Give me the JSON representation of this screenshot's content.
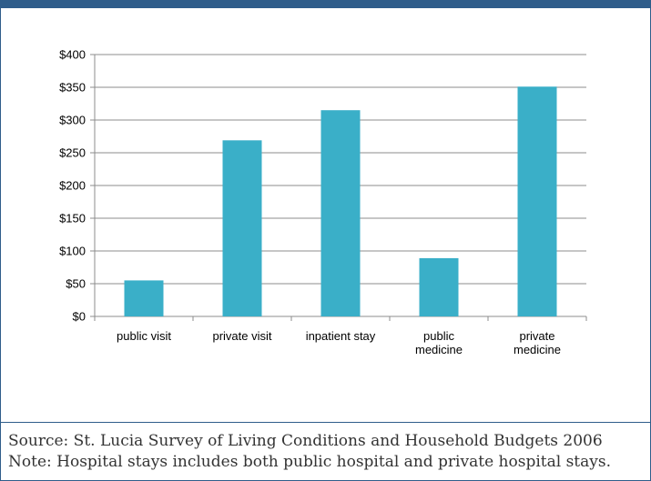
{
  "chart_data": {
    "type": "bar",
    "categories": [
      [
        "public visit"
      ],
      [
        "private visit"
      ],
      [
        "inpatient stay"
      ],
      [
        "public",
        "medicine"
      ],
      [
        "private",
        "medicine"
      ]
    ],
    "values": [
      55,
      269,
      315,
      89,
      351
    ],
    "y_ticks": [
      "$0",
      "$50",
      "$100",
      "$150",
      "$200",
      "$250",
      "$300",
      "$350",
      "$400"
    ],
    "ylim": [
      0,
      400
    ],
    "grid": true,
    "bar_color": "#3aafc8"
  },
  "footer": {
    "source": "Source: St. Lucia Survey of Living Conditions and Household Budgets 2006",
    "note": "Note: Hospital stays includes both public hospital and private hospital stays."
  },
  "colors": {
    "border": "#2f5d8a",
    "bar": "#3aafc8"
  }
}
